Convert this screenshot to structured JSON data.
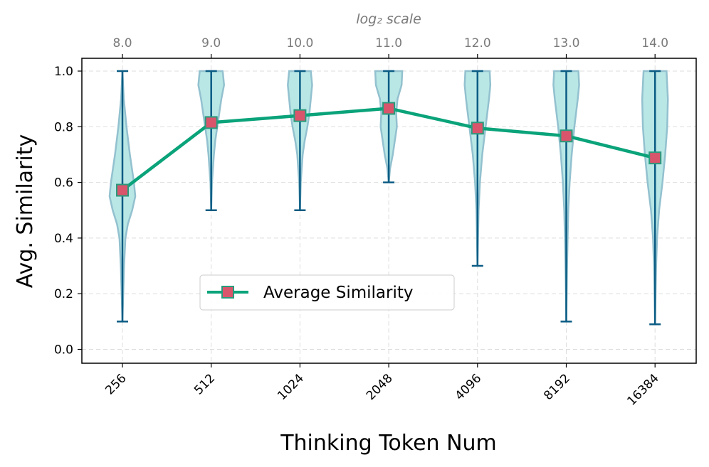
{
  "chart_data": {
    "type": "violin",
    "title": "",
    "xlabel": "Thinking Token Num",
    "ylabel": "Avg. Similarity",
    "top_axis_label": "log₂ scale",
    "categories": [
      "256",
      "512",
      "1024",
      "2048",
      "4096",
      "8192",
      "16384"
    ],
    "top_ticks": [
      "8.0",
      "9.0",
      "10.0",
      "11.0",
      "12.0",
      "13.0",
      "14.0"
    ],
    "y_ticks": [
      "0.0",
      "0.2",
      "0.4",
      "0.6",
      "0.8",
      "1.0"
    ],
    "ylim": [
      -0.05,
      1.05
    ],
    "grid": true,
    "legend": {
      "position": "center-left",
      "entries": [
        "Average Similarity"
      ]
    },
    "series": [
      {
        "name": "Average Similarity",
        "values": [
          0.572,
          0.815,
          0.84,
          0.866,
          0.795,
          0.767,
          0.688
        ]
      }
    ],
    "violins": [
      {
        "min": 0.1,
        "max": 1.0,
        "profile": [
          [
            0.1,
            0.0
          ],
          [
            0.2,
            0.06
          ],
          [
            0.3,
            0.12
          ],
          [
            0.4,
            0.22
          ],
          [
            0.45,
            0.4
          ],
          [
            0.5,
            0.72
          ],
          [
            0.55,
            0.95
          ],
          [
            0.6,
            0.85
          ],
          [
            0.7,
            0.55
          ],
          [
            0.8,
            0.3
          ],
          [
            0.9,
            0.1
          ],
          [
            1.0,
            0.0
          ]
        ]
      },
      {
        "min": 0.5,
        "max": 1.0,
        "profile": [
          [
            0.5,
            0.0
          ],
          [
            0.6,
            0.06
          ],
          [
            0.7,
            0.2
          ],
          [
            0.75,
            0.3
          ],
          [
            0.8,
            0.45
          ],
          [
            0.85,
            0.6
          ],
          [
            0.9,
            0.75
          ],
          [
            0.95,
            0.95
          ],
          [
            1.0,
            0.85
          ]
        ]
      },
      {
        "min": 0.5,
        "max": 1.0,
        "profile": [
          [
            0.5,
            0.0
          ],
          [
            0.6,
            0.06
          ],
          [
            0.7,
            0.2
          ],
          [
            0.75,
            0.35
          ],
          [
            0.8,
            0.55
          ],
          [
            0.85,
            0.7
          ],
          [
            0.9,
            0.8
          ],
          [
            0.95,
            0.9
          ],
          [
            1.0,
            0.8
          ]
        ]
      },
      {
        "min": 0.6,
        "max": 1.0,
        "profile": [
          [
            0.6,
            0.0
          ],
          [
            0.65,
            0.1
          ],
          [
            0.7,
            0.3
          ],
          [
            0.75,
            0.45
          ],
          [
            0.8,
            0.6
          ],
          [
            0.85,
            0.55
          ],
          [
            0.9,
            0.65
          ],
          [
            0.95,
            0.95
          ],
          [
            1.0,
            1.0
          ]
        ]
      },
      {
        "min": 0.3,
        "max": 1.0,
        "profile": [
          [
            0.3,
            0.0
          ],
          [
            0.4,
            0.04
          ],
          [
            0.5,
            0.08
          ],
          [
            0.6,
            0.18
          ],
          [
            0.7,
            0.35
          ],
          [
            0.8,
            0.6
          ],
          [
            0.9,
            0.85
          ],
          [
            0.95,
            0.95
          ],
          [
            1.0,
            0.9
          ]
        ]
      },
      {
        "min": 0.1,
        "max": 1.0,
        "profile": [
          [
            0.1,
            0.0
          ],
          [
            0.2,
            0.03
          ],
          [
            0.3,
            0.06
          ],
          [
            0.4,
            0.1
          ],
          [
            0.5,
            0.15
          ],
          [
            0.6,
            0.25
          ],
          [
            0.7,
            0.4
          ],
          [
            0.8,
            0.6
          ],
          [
            0.9,
            0.85
          ],
          [
            0.95,
            0.95
          ],
          [
            1.0,
            0.9
          ]
        ]
      },
      {
        "min": 0.09,
        "max": 1.0,
        "profile": [
          [
            0.09,
            0.0
          ],
          [
            0.2,
            0.04
          ],
          [
            0.3,
            0.08
          ],
          [
            0.4,
            0.15
          ],
          [
            0.5,
            0.3
          ],
          [
            0.6,
            0.55
          ],
          [
            0.7,
            0.75
          ],
          [
            0.8,
            0.9
          ],
          [
            0.9,
            0.95
          ],
          [
            1.0,
            0.85
          ]
        ]
      }
    ],
    "colors": {
      "violin_fill": "#b5e6e4",
      "violin_edge": "#93c1cf",
      "whisker": "#0b5c84",
      "line": "#0aa37a",
      "marker_fill": "#d9556b",
      "marker_edge": "#2a9a7d",
      "grid": "#dddddd"
    }
  }
}
